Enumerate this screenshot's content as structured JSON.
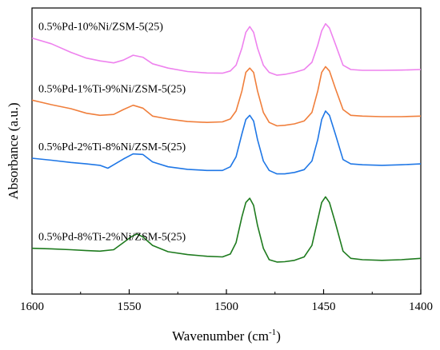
{
  "chart_data": {
    "type": "line",
    "xlabel": "Wavenumber (cm",
    "xlabel_sup": "-1",
    "xlabel_suffix": ")",
    "ylabel": "Absorbance (a.u.)",
    "xlim": [
      1600,
      1400
    ],
    "ylim": [
      0,
      1
    ],
    "x_reversed": true,
    "y_ticks_shown": false,
    "grid": false,
    "x_ticks": [
      "1600",
      "1550",
      "1500",
      "1450",
      "1400"
    ],
    "series": [
      {
        "name": "0.5%Pd-10%Ni/ZSM-5(25)",
        "color": "#ee82ee",
        "points": [
          [
            1600,
            0.895
          ],
          [
            1590,
            0.875
          ],
          [
            1580,
            0.845
          ],
          [
            1572,
            0.825
          ],
          [
            1565,
            0.815
          ],
          [
            1558,
            0.808
          ],
          [
            1553,
            0.818
          ],
          [
            1548,
            0.835
          ],
          [
            1543,
            0.828
          ],
          [
            1538,
            0.805
          ],
          [
            1530,
            0.79
          ],
          [
            1520,
            0.778
          ],
          [
            1510,
            0.773
          ],
          [
            1502,
            0.772
          ],
          [
            1498,
            0.78
          ],
          [
            1495,
            0.8
          ],
          [
            1492,
            0.86
          ],
          [
            1490,
            0.915
          ],
          [
            1488,
            0.935
          ],
          [
            1486,
            0.915
          ],
          [
            1484,
            0.86
          ],
          [
            1481,
            0.8
          ],
          [
            1478,
            0.775
          ],
          [
            1474,
            0.765
          ],
          [
            1470,
            0.768
          ],
          [
            1465,
            0.775
          ],
          [
            1460,
            0.785
          ],
          [
            1456,
            0.81
          ],
          [
            1453,
            0.87
          ],
          [
            1451,
            0.92
          ],
          [
            1449,
            0.945
          ],
          [
            1447,
            0.93
          ],
          [
            1444,
            0.875
          ],
          [
            1440,
            0.8
          ],
          [
            1436,
            0.785
          ],
          [
            1430,
            0.782
          ],
          [
            1420,
            0.782
          ],
          [
            1410,
            0.783
          ],
          [
            1400,
            0.785
          ]
        ]
      },
      {
        "name": "0.5%Pd-1%Ti-9%Ni/ZSM-5(25)",
        "color": "#f07f3c",
        "points": [
          [
            1600,
            0.678
          ],
          [
            1590,
            0.662
          ],
          [
            1580,
            0.648
          ],
          [
            1572,
            0.632
          ],
          [
            1565,
            0.625
          ],
          [
            1558,
            0.628
          ],
          [
            1553,
            0.645
          ],
          [
            1548,
            0.66
          ],
          [
            1543,
            0.65
          ],
          [
            1538,
            0.622
          ],
          [
            1530,
            0.612
          ],
          [
            1520,
            0.603
          ],
          [
            1510,
            0.6
          ],
          [
            1502,
            0.602
          ],
          [
            1498,
            0.612
          ],
          [
            1495,
            0.64
          ],
          [
            1492,
            0.71
          ],
          [
            1490,
            0.775
          ],
          [
            1488,
            0.79
          ],
          [
            1486,
            0.775
          ],
          [
            1484,
            0.71
          ],
          [
            1481,
            0.635
          ],
          [
            1478,
            0.6
          ],
          [
            1474,
            0.588
          ],
          [
            1470,
            0.59
          ],
          [
            1465,
            0.595
          ],
          [
            1460,
            0.605
          ],
          [
            1456,
            0.635
          ],
          [
            1453,
            0.71
          ],
          [
            1451,
            0.775
          ],
          [
            1449,
            0.795
          ],
          [
            1447,
            0.78
          ],
          [
            1444,
            0.72
          ],
          [
            1440,
            0.645
          ],
          [
            1436,
            0.625
          ],
          [
            1430,
            0.622
          ],
          [
            1420,
            0.62
          ],
          [
            1410,
            0.62
          ],
          [
            1400,
            0.622
          ]
        ]
      },
      {
        "name": "0.5%Pd-2%Ti-8%Ni/ZSM-5(25)",
        "color": "#1f77e6",
        "points": [
          [
            1600,
            0.475
          ],
          [
            1590,
            0.468
          ],
          [
            1580,
            0.46
          ],
          [
            1572,
            0.455
          ],
          [
            1565,
            0.45
          ],
          [
            1561,
            0.44
          ],
          [
            1558,
            0.452
          ],
          [
            1553,
            0.472
          ],
          [
            1548,
            0.49
          ],
          [
            1543,
            0.488
          ],
          [
            1538,
            0.462
          ],
          [
            1530,
            0.445
          ],
          [
            1520,
            0.436
          ],
          [
            1510,
            0.432
          ],
          [
            1502,
            0.432
          ],
          [
            1498,
            0.445
          ],
          [
            1495,
            0.48
          ],
          [
            1492,
            0.56
          ],
          [
            1490,
            0.61
          ],
          [
            1488,
            0.625
          ],
          [
            1486,
            0.605
          ],
          [
            1484,
            0.54
          ],
          [
            1481,
            0.465
          ],
          [
            1478,
            0.432
          ],
          [
            1474,
            0.42
          ],
          [
            1470,
            0.42
          ],
          [
            1465,
            0.425
          ],
          [
            1460,
            0.435
          ],
          [
            1456,
            0.465
          ],
          [
            1453,
            0.54
          ],
          [
            1451,
            0.61
          ],
          [
            1449,
            0.64
          ],
          [
            1447,
            0.625
          ],
          [
            1444,
            0.56
          ],
          [
            1440,
            0.47
          ],
          [
            1436,
            0.455
          ],
          [
            1430,
            0.452
          ],
          [
            1420,
            0.45
          ],
          [
            1410,
            0.452
          ],
          [
            1400,
            0.455
          ]
        ]
      },
      {
        "name": "0.5%Pd-8%Ti-2%Ni/ZSM-5(25)",
        "color": "#1e7b1e",
        "points": [
          [
            1600,
            0.16
          ],
          [
            1590,
            0.158
          ],
          [
            1580,
            0.155
          ],
          [
            1572,
            0.152
          ],
          [
            1565,
            0.15
          ],
          [
            1558,
            0.155
          ],
          [
            1553,
            0.18
          ],
          [
            1549,
            0.2
          ],
          [
            1546,
            0.21
          ],
          [
            1543,
            0.2
          ],
          [
            1538,
            0.17
          ],
          [
            1530,
            0.148
          ],
          [
            1520,
            0.138
          ],
          [
            1510,
            0.132
          ],
          [
            1502,
            0.13
          ],
          [
            1498,
            0.14
          ],
          [
            1495,
            0.18
          ],
          [
            1492,
            0.27
          ],
          [
            1490,
            0.32
          ],
          [
            1488,
            0.335
          ],
          [
            1486,
            0.31
          ],
          [
            1484,
            0.24
          ],
          [
            1481,
            0.16
          ],
          [
            1478,
            0.12
          ],
          [
            1474,
            0.112
          ],
          [
            1470,
            0.113
          ],
          [
            1465,
            0.118
          ],
          [
            1460,
            0.13
          ],
          [
            1456,
            0.17
          ],
          [
            1453,
            0.26
          ],
          [
            1451,
            0.32
          ],
          [
            1449,
            0.34
          ],
          [
            1447,
            0.32
          ],
          [
            1444,
            0.25
          ],
          [
            1440,
            0.15
          ],
          [
            1436,
            0.125
          ],
          [
            1430,
            0.12
          ],
          [
            1420,
            0.118
          ],
          [
            1410,
            0.12
          ],
          [
            1400,
            0.125
          ]
        ]
      }
    ]
  }
}
